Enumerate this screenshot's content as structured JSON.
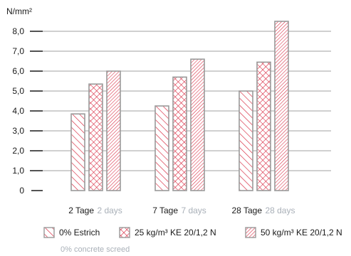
{
  "chart_data": {
    "type": "bar",
    "unit_label": "N/mm²",
    "ylim": [
      0,
      8.8
    ],
    "y_ticks": [
      {
        "value": 0,
        "label": "0"
      },
      {
        "value": 1,
        "label": "1,0"
      },
      {
        "value": 2,
        "label": "2,0"
      },
      {
        "value": 3,
        "label": "3,0"
      },
      {
        "value": 4,
        "label": "4,0"
      },
      {
        "value": 5,
        "label": "5,0"
      },
      {
        "value": 6,
        "label": "6,0"
      },
      {
        "value": 7,
        "label": "7,0"
      },
      {
        "value": 8,
        "label": "8,0"
      }
    ],
    "grid": true,
    "categories": [
      {
        "label_de": "2 Tage",
        "label_en": "2 days"
      },
      {
        "label_de": "7 Tage",
        "label_en": "7 days"
      },
      {
        "label_de": "28 Tage",
        "label_en": "28 days"
      }
    ],
    "series": [
      {
        "name": "0% Estrich",
        "name_en": "0% concrete screed",
        "pattern": "diagonal-hatch",
        "values": [
          3.85,
          4.25,
          5.0
        ]
      },
      {
        "name": "25 kg/m³ KE 20/1,2 N",
        "name_en": "",
        "pattern": "cross-hatch",
        "values": [
          5.35,
          5.7,
          6.45
        ]
      },
      {
        "name": "50 kg/m³ KE 20/1,2 N",
        "name_en": "",
        "pattern": "dense-diagonal-hatch",
        "values": [
          6.0,
          6.6,
          8.5
        ]
      }
    ],
    "legend_position": "bottom",
    "colors": {
      "hatch": "#d7263d",
      "bar_border": "#9a9a9a",
      "grid": "#808080",
      "axis": "#1a1a1a",
      "secondary_text": "#a9b0b8"
    }
  }
}
